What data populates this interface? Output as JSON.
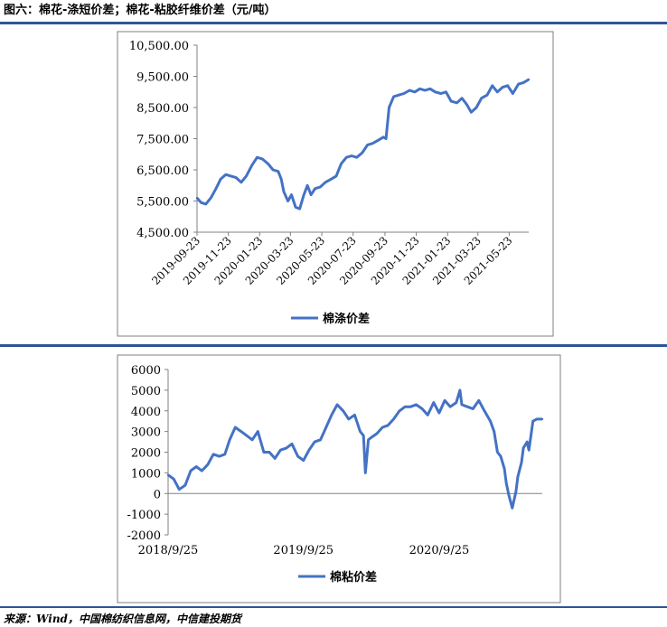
{
  "figure_title": "图六：棉花-涤短价差；棉花-粘胶纤维价差（元/吨）",
  "source": "来源：Wind，中国棉纺织信息网，中信建投期货",
  "colors": {
    "line": "#4472c4",
    "rule": "#2f5597"
  },
  "chart_data": [
    {
      "type": "line",
      "title": "",
      "xlabel": "",
      "ylabel": "",
      "ylim": [
        4500,
        10500
      ],
      "ytick_labels": [
        "4,500.00",
        "5,500.00",
        "6,500.00",
        "7,500.00",
        "8,500.00",
        "9,500.00",
        "10,500.00"
      ],
      "yticks": [
        4500,
        5500,
        6500,
        7500,
        8500,
        9500,
        10500
      ],
      "xlim": [
        "2019-09-23",
        "2021-06-30"
      ],
      "xticks": [
        "2019-09-23",
        "2019-11-23",
        "2020-01-23",
        "2020-03-23",
        "2020-05-23",
        "2020-07-23",
        "2020-09-23",
        "2020-11-23",
        "2021-01-23",
        "2021-03-23",
        "2021-05-23"
      ],
      "grid": false,
      "legend": "bottom-center",
      "series": [
        {
          "name": "棉涤价差",
          "x": [
            "2019-09-23",
            "2019-10-01",
            "2019-10-10",
            "2019-10-20",
            "2019-10-30",
            "2019-11-08",
            "2019-11-18",
            "2019-11-28",
            "2019-12-08",
            "2019-12-18",
            "2019-12-28",
            "2020-01-08",
            "2020-01-18",
            "2020-01-28",
            "2020-02-08",
            "2020-02-18",
            "2020-02-28",
            "2020-03-05",
            "2020-03-10",
            "2020-03-18",
            "2020-03-25",
            "2020-04-02",
            "2020-04-10",
            "2020-04-18",
            "2020-04-25",
            "2020-05-02",
            "2020-05-10",
            "2020-05-20",
            "2020-05-30",
            "2020-06-10",
            "2020-06-20",
            "2020-06-30",
            "2020-07-10",
            "2020-07-20",
            "2020-07-30",
            "2020-08-10",
            "2020-08-20",
            "2020-08-30",
            "2020-09-10",
            "2020-09-20",
            "2020-09-25",
            "2020-10-01",
            "2020-10-10",
            "2020-10-20",
            "2020-10-30",
            "2020-11-10",
            "2020-11-20",
            "2020-11-30",
            "2020-12-10",
            "2020-12-20",
            "2020-12-30",
            "2021-01-10",
            "2021-01-20",
            "2021-01-30",
            "2021-02-10",
            "2021-02-20",
            "2021-03-01",
            "2021-03-10",
            "2021-03-20",
            "2021-03-30",
            "2021-04-10",
            "2021-04-20",
            "2021-04-30",
            "2021-05-10",
            "2021-05-20",
            "2021-05-30",
            "2021-06-10",
            "2021-06-20",
            "2021-06-30"
          ],
          "values": [
            5600,
            5450,
            5400,
            5600,
            5900,
            6200,
            6350,
            6300,
            6250,
            6100,
            6300,
            6650,
            6900,
            6850,
            6700,
            6500,
            6450,
            6200,
            5800,
            5500,
            5700,
            5300,
            5250,
            5700,
            6000,
            5700,
            5900,
            5950,
            6100,
            6200,
            6300,
            6700,
            6900,
            6950,
            6900,
            7050,
            7300,
            7350,
            7450,
            7550,
            7500,
            8500,
            8850,
            8900,
            8950,
            9050,
            9000,
            9100,
            9050,
            9100,
            9000,
            8950,
            9000,
            8700,
            8650,
            8800,
            8600,
            8350,
            8500,
            8800,
            8900,
            9200,
            9000,
            9150,
            9200,
            8950,
            9250,
            9300,
            9400
          ]
        }
      ]
    },
    {
      "type": "line",
      "title": "",
      "xlabel": "",
      "ylabel": "",
      "ylim": [
        -2000,
        6000
      ],
      "yticks": [
        -2000,
        -1000,
        0,
        1000,
        2000,
        3000,
        4000,
        5000,
        6000
      ],
      "xlim": [
        "2018-09-25",
        "2021-06-30"
      ],
      "xticks": [
        "2018/9/25",
        "2019/9/25",
        "2020/9/25"
      ],
      "grid": false,
      "legend": "bottom-center",
      "series": [
        {
          "name": "棉粘价差",
          "x": [
            "2018-09-25",
            "2018-10-10",
            "2018-10-25",
            "2018-11-10",
            "2018-11-25",
            "2018-12-10",
            "2018-12-25",
            "2019-01-10",
            "2019-01-25",
            "2019-02-10",
            "2019-02-25",
            "2019-03-10",
            "2019-03-25",
            "2019-04-10",
            "2019-04-25",
            "2019-05-10",
            "2019-05-25",
            "2019-06-10",
            "2019-06-25",
            "2019-07-10",
            "2019-07-25",
            "2019-08-10",
            "2019-08-25",
            "2019-09-10",
            "2019-09-25",
            "2019-10-10",
            "2019-10-25",
            "2019-11-10",
            "2019-11-25",
            "2019-12-10",
            "2019-12-25",
            "2020-01-10",
            "2020-01-25",
            "2020-02-10",
            "2020-02-25",
            "2020-03-05",
            "2020-03-10",
            "2020-03-18",
            "2020-03-25",
            "2020-04-10",
            "2020-04-25",
            "2020-05-10",
            "2020-05-25",
            "2020-06-10",
            "2020-06-25",
            "2020-07-10",
            "2020-07-25",
            "2020-08-10",
            "2020-08-25",
            "2020-09-10",
            "2020-09-25",
            "2020-10-10",
            "2020-10-25",
            "2020-11-10",
            "2020-11-20",
            "2020-11-25",
            "2020-12-10",
            "2020-12-25",
            "2021-01-10",
            "2021-01-25",
            "2021-02-10",
            "2021-02-20",
            "2021-03-01",
            "2021-03-10",
            "2021-03-20",
            "2021-03-25",
            "2021-04-01",
            "2021-04-10",
            "2021-04-20",
            "2021-04-25",
            "2021-05-05",
            "2021-05-10",
            "2021-05-20",
            "2021-05-25",
            "2021-06-05",
            "2021-06-15",
            "2021-06-30"
          ],
          "values": [
            900,
            700,
            200,
            400,
            1100,
            1300,
            1100,
            1400,
            1900,
            1800,
            1900,
            2600,
            3200,
            3000,
            2800,
            2600,
            3000,
            2000,
            2000,
            1700,
            2100,
            2200,
            2400,
            1800,
            1600,
            2100,
            2500,
            2600,
            3200,
            3800,
            4300,
            4000,
            3600,
            3800,
            3000,
            2800,
            1000,
            2600,
            2700,
            2900,
            3200,
            3300,
            3600,
            4000,
            4200,
            4200,
            4300,
            4100,
            3800,
            4400,
            3900,
            4500,
            4200,
            4400,
            5000,
            4300,
            4200,
            4100,
            4500,
            4000,
            3500,
            3000,
            2000,
            1800,
            1200,
            500,
            -100,
            -700,
            100,
            800,
            1500,
            2200,
            2500,
            2100,
            3500,
            3600,
            3600
          ]
        }
      ]
    }
  ]
}
